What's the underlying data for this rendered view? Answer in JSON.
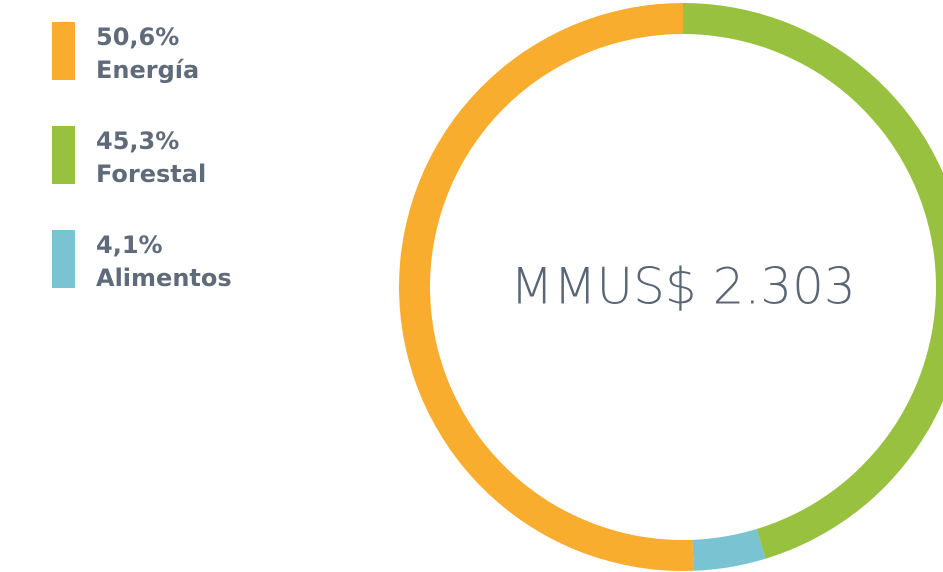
{
  "chart_data": {
    "type": "donut",
    "center_label": "MMUS$ 2.303",
    "categories": [
      "Energía",
      "Forestal",
      "Alimentos"
    ],
    "values": [
      50.6,
      45.3,
      4.1
    ],
    "value_labels": [
      "50,6%",
      "45,3%",
      "4,1%"
    ],
    "colors": [
      "#f9ad2f",
      "#97c13f",
      "#7ac3d3"
    ],
    "legend": "top-left"
  }
}
